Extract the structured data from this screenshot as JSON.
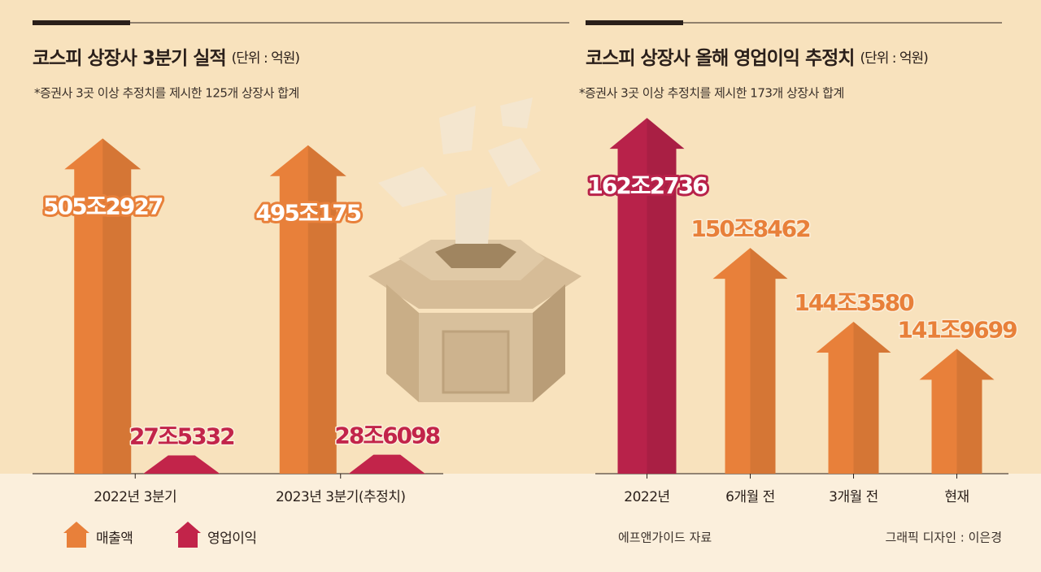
{
  "chart_data": [
    {
      "type": "bar",
      "title": "코스피 상장사 3분기 실적",
      "unit": "(단위 : 억원)",
      "subtitle": "*증권사 3곳 이상 추정치를 제시한 125개 상장사 합계",
      "categories": [
        "2022년 3분기",
        "2023년 3분기(추정치)"
      ],
      "series": [
        {
          "name": "매출액",
          "color": "#e8803a",
          "values": [
            5052927,
            4950175
          ],
          "value_labels": [
            "505조2927",
            "495조175"
          ]
        },
        {
          "name": "영업이익",
          "color": "#c2244a",
          "values": [
            275332,
            286098
          ],
          "value_labels": [
            "27조5332",
            "28조6098"
          ]
        }
      ],
      "ylim": [
        0,
        6000000
      ]
    },
    {
      "type": "bar",
      "title": "코스피 상장사 올해 영업이익 추정치",
      "unit": "(단위 : 억원)",
      "subtitle": "*증권사 3곳 이상 추정치를 제시한 173개 상장사 합계",
      "categories": [
        "2022년",
        "6개월 전",
        "3개월 전",
        "현재"
      ],
      "values": [
        1622736,
        1508462,
        1443580,
        1419699
      ],
      "value_labels": [
        "162조2736",
        "150조8462",
        "144조3580",
        "141조9699"
      ],
      "colors": [
        "#b8224a",
        "#e8803a",
        "#e8803a",
        "#e8803a"
      ],
      "ylim": [
        1310000,
        1660000
      ]
    }
  ],
  "source": "에프앤가이드 자료",
  "credit": "그래픽 디자인 : 이은경"
}
